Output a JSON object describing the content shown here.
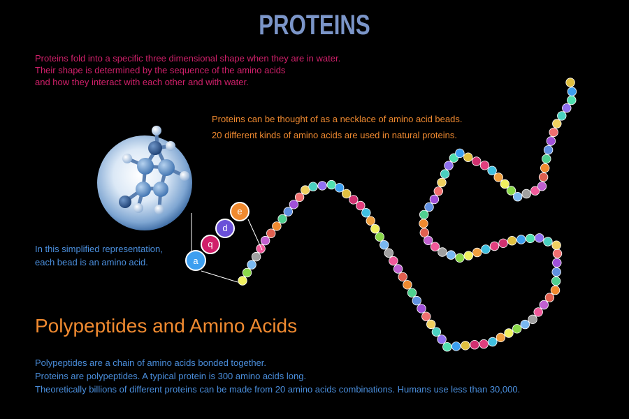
{
  "title": "PROTEINS",
  "intro_lines": [
    "Proteins fold into a specific three dimensional shape when they are in water.",
    "Their shape is determined by the sequence of the amino acids",
    "and how they interact with each other and with  water."
  ],
  "necklace_lines": [
    "Proteins can be thought of as a necklace of amino acid beads.",
    "20 different kinds of amino acids are used in natural proteins."
  ],
  "simplified_lines": [
    "In this simplified representation,",
    "each bead is an amino acid."
  ],
  "bead_letters": [
    "a",
    "q",
    "d",
    "e"
  ],
  "heading": "Polypeptides and Amino Acids",
  "bottom_lines": [
    "Polypeptides are a chain of amino acids bonded together.",
    "Proteins are polypeptides. A typical protein is 300 amino acids long.",
    "Theoretically billions of different proteins can be made from 20 amino acids combinations. Humans use less than 30,000."
  ],
  "colors": {
    "title": "#7b95c8",
    "intro_text": "#d0206a",
    "orange_text": "#f08a30",
    "blue_text": "#4a8edc",
    "bead_a": "#3d9ff0",
    "bead_q": "#d0206a",
    "bead_d": "#6a50d8",
    "bead_e": "#f08a30"
  }
}
